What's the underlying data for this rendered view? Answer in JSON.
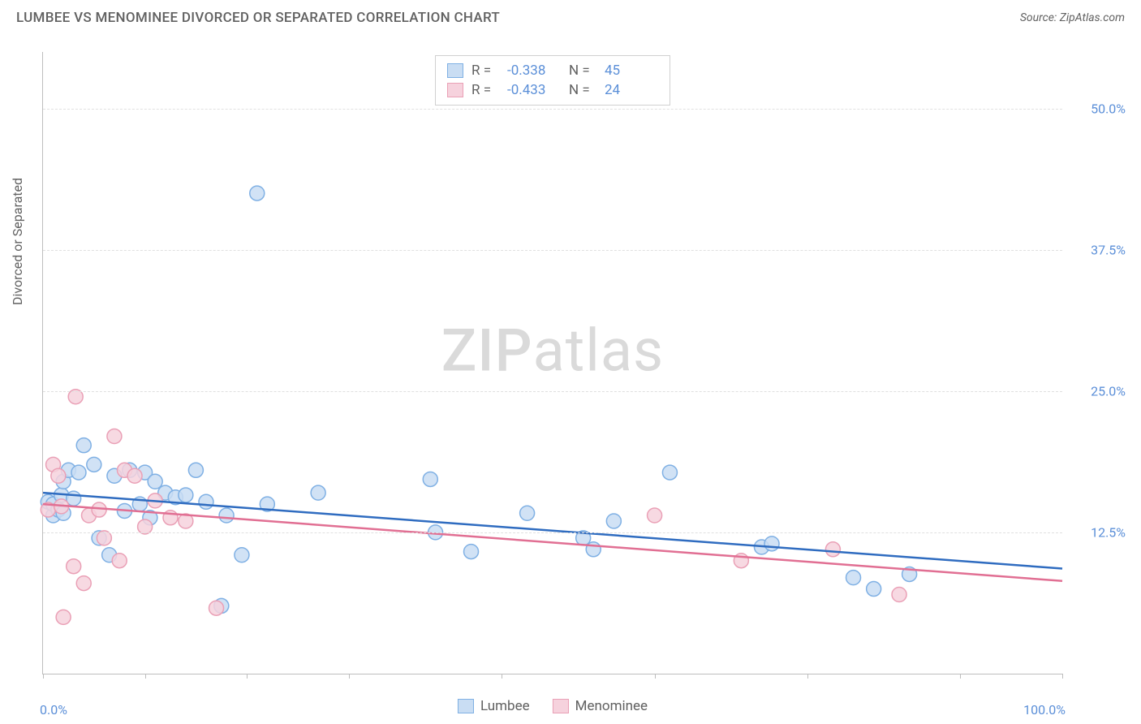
{
  "title": "LUMBEE VS MENOMINEE DIVORCED OR SEPARATED CORRELATION CHART",
  "source": "Source: ZipAtlas.com",
  "watermark_zip": "ZIP",
  "watermark_atlas": "atlas",
  "y_axis_label": "Divorced or Separated",
  "chart": {
    "type": "scatter",
    "x_min": 0,
    "x_max": 100,
    "y_min": 0,
    "y_max": 55,
    "x_min_label": "0.0%",
    "x_max_label": "100.0%",
    "y_ticks": [
      12.5,
      25.0,
      37.5,
      50.0
    ],
    "y_tick_labels": [
      "12.5%",
      "25.0%",
      "37.5%",
      "50.0%"
    ],
    "x_tick_positions": [
      0,
      10,
      20,
      30,
      45,
      60,
      75,
      90,
      100
    ],
    "background_color": "#ffffff",
    "grid_color": "#e0e0e0",
    "axis_color": "#bdbdbd",
    "marker_radius": 9,
    "marker_stroke_width": 1.5,
    "line_width": 2.5,
    "series": [
      {
        "name": "Lumbee",
        "fill": "#c9ddf3",
        "stroke": "#7fb0e4",
        "line_color": "#2f6cc0",
        "R": "-0.338",
        "N": "45",
        "trend": {
          "x1": 0,
          "y1": 16.0,
          "x2": 100,
          "y2": 9.3
        },
        "points": [
          [
            0.5,
            15.2
          ],
          [
            1.0,
            14.0
          ],
          [
            1.0,
            15.0
          ],
          [
            1.5,
            14.5
          ],
          [
            1.8,
            15.8
          ],
          [
            2.0,
            14.2
          ],
          [
            2.0,
            17.0
          ],
          [
            2.5,
            18.0
          ],
          [
            3.0,
            15.5
          ],
          [
            3.5,
            17.8
          ],
          [
            4.0,
            20.2
          ],
          [
            5.0,
            18.5
          ],
          [
            5.5,
            12.0
          ],
          [
            6.5,
            10.5
          ],
          [
            7.0,
            17.5
          ],
          [
            8.0,
            14.4
          ],
          [
            8.5,
            18.0
          ],
          [
            9.5,
            15.0
          ],
          [
            10.0,
            17.8
          ],
          [
            10.5,
            13.8
          ],
          [
            11.0,
            17.0
          ],
          [
            12.0,
            16.0
          ],
          [
            13.0,
            15.6
          ],
          [
            14.0,
            15.8
          ],
          [
            15.0,
            18.0
          ],
          [
            16.0,
            15.2
          ],
          [
            17.5,
            6.0
          ],
          [
            18.0,
            14.0
          ],
          [
            19.5,
            10.5
          ],
          [
            21.0,
            42.5
          ],
          [
            22.0,
            15.0
          ],
          [
            27.0,
            16.0
          ],
          [
            38.0,
            17.2
          ],
          [
            38.5,
            12.5
          ],
          [
            42.0,
            10.8
          ],
          [
            47.5,
            14.2
          ],
          [
            53.0,
            12.0
          ],
          [
            54.0,
            11.0
          ],
          [
            56.0,
            13.5
          ],
          [
            61.5,
            17.8
          ],
          [
            70.5,
            11.2
          ],
          [
            71.5,
            11.5
          ],
          [
            79.5,
            8.5
          ],
          [
            81.5,
            7.5
          ],
          [
            85.0,
            8.8
          ]
        ]
      },
      {
        "name": "Menominee",
        "fill": "#f6d2dd",
        "stroke": "#eaa0b6",
        "line_color": "#e16f93",
        "R": "-0.433",
        "N": "24",
        "trend": {
          "x1": 0,
          "y1": 15.0,
          "x2": 100,
          "y2": 8.2
        },
        "points": [
          [
            0.5,
            14.5
          ],
          [
            1.0,
            18.5
          ],
          [
            1.5,
            17.5
          ],
          [
            1.8,
            14.8
          ],
          [
            2.0,
            5.0
          ],
          [
            3.0,
            9.5
          ],
          [
            3.2,
            24.5
          ],
          [
            4.0,
            8.0
          ],
          [
            4.5,
            14.0
          ],
          [
            5.5,
            14.5
          ],
          [
            6.0,
            12.0
          ],
          [
            7.0,
            21.0
          ],
          [
            7.5,
            10.0
          ],
          [
            8.0,
            18.0
          ],
          [
            9.0,
            17.5
          ],
          [
            10.0,
            13.0
          ],
          [
            11.0,
            15.3
          ],
          [
            12.5,
            13.8
          ],
          [
            14.0,
            13.5
          ],
          [
            17.0,
            5.8
          ],
          [
            60.0,
            14.0
          ],
          [
            68.5,
            10.0
          ],
          [
            77.5,
            11.0
          ],
          [
            84.0,
            7.0
          ]
        ]
      }
    ],
    "legend_top_labels": {
      "R": "R =",
      "N": "N ="
    },
    "legend_bottom": [
      {
        "label": "Lumbee",
        "fill": "#c9ddf3",
        "stroke": "#7fb0e4"
      },
      {
        "label": "Menominee",
        "fill": "#f6d2dd",
        "stroke": "#eaa0b6"
      }
    ]
  }
}
